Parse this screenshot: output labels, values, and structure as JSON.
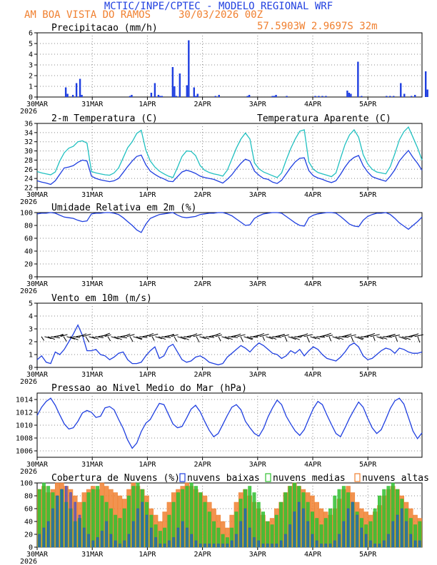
{
  "header": {
    "title": "MCTIC/INPE/CPTEC - MODELO REGIONAL WRF",
    "location": "AM BOA VISTA DO RAMOS",
    "date": "30/03/2026 00Z",
    "coords": "57.5903W 2.9697S 32m"
  },
  "colors": {
    "blue": "#1f3fe0",
    "cyan": "#20c0c0",
    "orange": "#f08030",
    "green": "#30c030",
    "grid": "#888888"
  },
  "x_ticks": [
    "30MAR",
    "31MAR",
    "1APR",
    "2APR",
    "3APR",
    "4APR",
    "5APR"
  ],
  "x_year": "2026",
  "chart_data": [
    {
      "type": "bar",
      "title": "Precipitacao (mm/h)",
      "ylim": [
        0,
        6
      ],
      "yticks": [
        "0",
        "1",
        "2",
        "3",
        "4",
        "5",
        "6"
      ],
      "x_hours": [
        16,
        17,
        20,
        22,
        24,
        25,
        52,
        53,
        64,
        66,
        68,
        69,
        70,
        76,
        77,
        78,
        80,
        84,
        85,
        88,
        89,
        90,
        100,
        102,
        118,
        119,
        132,
        133,
        134,
        140,
        156,
        158,
        160,
        162,
        174,
        175,
        176,
        180,
        182,
        196,
        198,
        200,
        204,
        206,
        210,
        212,
        218,
        219
      ],
      "values": [
        0.9,
        0.3,
        0.2,
        1.3,
        1.7,
        0.2,
        0.1,
        0.2,
        0.4,
        1.3,
        0.2,
        0.1,
        0.1,
        2.8,
        1.0,
        0.1,
        2.2,
        1.1,
        5.3,
        0.9,
        0.1,
        0.3,
        0.1,
        0.2,
        0.1,
        0.2,
        0.1,
        0.1,
        0.2,
        0.1,
        0.1,
        0.1,
        0.1,
        0.1,
        0.6,
        0.4,
        0.3,
        3.3,
        0.1,
        0.1,
        0.1,
        0.1,
        1.3,
        0.3,
        0.1,
        0.2,
        2.4,
        0.7
      ]
    },
    {
      "type": "line",
      "title": "2-m Temperatura (C)",
      "ylim": [
        22,
        36
      ],
      "yticks": [
        "22",
        "24",
        "26",
        "28",
        "30",
        "32",
        "34",
        "36"
      ],
      "legend": "Temperatura Aparente (C)",
      "series": [
        {
          "name": "Temperatura (C)",
          "color": "#1f3fe0",
          "values": [
            23.5,
            23.2,
            23.0,
            22.7,
            23.5,
            24.9,
            26.3,
            26.5,
            26.8,
            27.5,
            28.0,
            27.8,
            24.5,
            24.0,
            23.7,
            23.5,
            23.3,
            23.5,
            24.0,
            25.3,
            26.6,
            27.8,
            28.8,
            29.1,
            27.0,
            25.6,
            24.9,
            24.3,
            23.9,
            23.4,
            23.3,
            24.4,
            25.4,
            25.8,
            25.5,
            25.1,
            24.5,
            24.2,
            24.0,
            23.8,
            23.4,
            23.0,
            23.8,
            24.8,
            26.1,
            27.3,
            28.2,
            27.8,
            25.6,
            24.7,
            24.0,
            23.8,
            23.2,
            22.9,
            23.6,
            25.0,
            26.4,
            27.6,
            28.4,
            28.5,
            25.7,
            24.6,
            24.1,
            23.8,
            23.4,
            23.1,
            23.5,
            24.9,
            26.5,
            27.8,
            28.6,
            29.0,
            26.8,
            25.4,
            24.4,
            24.0,
            23.7,
            23.4,
            24.5,
            25.9,
            27.8,
            29.0,
            30.1,
            28.6,
            27.3,
            25.8
          ]
        },
        {
          "name": "Temperatura Aparente (C)",
          "color": "#20c0c0",
          "values": [
            25.5,
            25.2,
            25.0,
            24.8,
            25.4,
            27.8,
            29.6,
            30.6,
            31.0,
            32.0,
            32.2,
            31.7,
            25.5,
            25.2,
            25.0,
            24.8,
            24.7,
            25.2,
            26.3,
            28.5,
            30.7,
            32.0,
            33.8,
            34.5,
            30.2,
            27.8,
            26.5,
            25.6,
            25.0,
            24.5,
            24.2,
            26.4,
            28.8,
            30.0,
            29.9,
            29.0,
            26.8,
            25.8,
            25.3,
            25.0,
            24.8,
            24.5,
            25.8,
            28.2,
            30.6,
            32.6,
            33.9,
            32.6,
            27.4,
            26.1,
            25.4,
            25.0,
            24.6,
            24.2,
            25.2,
            28.0,
            30.5,
            32.6,
            34.3,
            34.6,
            27.6,
            26.0,
            25.3,
            25.0,
            24.7,
            24.4,
            25.2,
            28.4,
            31.4,
            33.5,
            34.6,
            33.0,
            29.2,
            27.2,
            26.0,
            25.4,
            25.2,
            25.0,
            26.6,
            29.4,
            32.4,
            34.2,
            35.2,
            33.0,
            30.7,
            28.0
          ]
        }
      ]
    },
    {
      "type": "line",
      "title": "Umidade Relativa em 2m (%)",
      "ylim": [
        0,
        100
      ],
      "yticks": [
        "0",
        "20",
        "40",
        "60",
        "80",
        "100"
      ],
      "series": [
        {
          "name": "Umidade Relativa",
          "color": "#1f3fe0",
          "values": [
            98,
            99,
            99,
            100,
            99,
            96,
            93,
            92,
            91,
            88,
            86,
            87,
            98,
            99,
            99,
            100,
            100,
            99,
            97,
            92,
            86,
            80,
            73,
            69,
            82,
            91,
            94,
            97,
            98,
            99,
            100,
            96,
            93,
            92,
            93,
            94,
            97,
            98,
            99,
            99,
            100,
            100,
            98,
            95,
            90,
            85,
            80,
            81,
            91,
            95,
            98,
            99,
            100,
            100,
            99,
            94,
            89,
            84,
            80,
            79,
            92,
            96,
            98,
            99,
            100,
            100,
            99,
            94,
            88,
            82,
            79,
            78,
            88,
            94,
            97,
            99,
            99,
            100,
            97,
            91,
            84,
            79,
            74,
            80,
            86,
            93
          ]
        }
      ]
    },
    {
      "type": "line",
      "title": "Vento em 10m (m/s)",
      "ylim": [
        0,
        5
      ],
      "yticks": [
        "0",
        "1",
        "2",
        "3",
        "4",
        "5"
      ],
      "series": [
        {
          "name": "Velocidade do Vento",
          "color": "#1f3fe0",
          "values": [
            0.6,
            0.9,
            0.4,
            0.3,
            1.2,
            1.0,
            1.4,
            2.0,
            2.6,
            3.3,
            2.5,
            1.3,
            1.3,
            1.4,
            1.0,
            0.9,
            0.6,
            0.8,
            1.1,
            1.2,
            0.6,
            0.3,
            0.3,
            0.4,
            0.9,
            1.3,
            1.6,
            0.7,
            0.9,
            1.6,
            1.8,
            1.2,
            0.6,
            0.4,
            0.5,
            0.8,
            0.9,
            0.7,
            0.4,
            0.3,
            0.2,
            0.3,
            0.8,
            1.1,
            1.4,
            1.7,
            1.5,
            1.2,
            1.6,
            1.9,
            1.7,
            1.4,
            1.1,
            1.0,
            0.7,
            0.9,
            1.3,
            1.1,
            1.4,
            0.9,
            1.3,
            1.6,
            1.4,
            1.0,
            0.7,
            0.6,
            0.5,
            0.8,
            1.2,
            1.7,
            1.9,
            1.6,
            0.9,
            0.6,
            0.7,
            1.0,
            1.3,
            1.5,
            1.4,
            1.1,
            1.5,
            1.4,
            1.2,
            1.1,
            1.1,
            1.2
          ]
        }
      ]
    },
    {
      "type": "line",
      "title": "Pressao ao Nivel Medio do Mar (hPa)",
      "ylim": [
        1005,
        1015
      ],
      "yticks": [
        "1006",
        "1008",
        "1010",
        "1012",
        "1014"
      ],
      "series": [
        {
          "name": "Pressao",
          "color": "#1f3fe0",
          "values": [
            1011.5,
            1012.8,
            1013.7,
            1014.2,
            1013.1,
            1011.6,
            1010.2,
            1009.4,
            1009.6,
            1010.6,
            1011.9,
            1012.3,
            1012.0,
            1011.2,
            1011.4,
            1012.7,
            1012.9,
            1012.4,
            1010.9,
            1009.5,
            1007.7,
            1006.4,
            1007.2,
            1009.0,
            1010.3,
            1010.9,
            1012.2,
            1013.4,
            1013.2,
            1011.7,
            1010.2,
            1009.6,
            1009.8,
            1011.1,
            1012.5,
            1013.1,
            1012.1,
            1010.6,
            1009.2,
            1008.2,
            1008.7,
            1010.1,
            1011.5,
            1012.8,
            1013.2,
            1012.4,
            1010.6,
            1009.6,
            1008.7,
            1008.3,
            1009.5,
            1011.3,
            1012.7,
            1013.9,
            1013.2,
            1011.4,
            1010.2,
            1009.1,
            1008.4,
            1009.3,
            1011.0,
            1012.6,
            1013.7,
            1013.2,
            1011.6,
            1010.1,
            1008.7,
            1008.2,
            1009.6,
            1011.1,
            1012.4,
            1013.6,
            1012.8,
            1011.1,
            1009.6,
            1008.7,
            1009.3,
            1010.9,
            1012.6,
            1013.8,
            1014.2,
            1013.3,
            1011.2,
            1009.1,
            1007.9,
            1008.8
          ]
        }
      ]
    },
    {
      "type": "bar",
      "title": "Cobertura de Nuvens (%)",
      "ylim": [
        0,
        100
      ],
      "yticks": [
        "0",
        "20",
        "40",
        "60",
        "80",
        "100"
      ],
      "legend": [
        "nuvens baixas",
        "nuvens medias",
        "nuvens altas"
      ],
      "series": [
        {
          "name": "nuvens altas",
          "color": "#f08030",
          "values": [
            90,
            95,
            85,
            90,
            100,
            100,
            95,
            90,
            80,
            70,
            85,
            90,
            95,
            90,
            100,
            95,
            90,
            85,
            80,
            75,
            90,
            100,
            95,
            90,
            80,
            60,
            50,
            40,
            55,
            70,
            85,
            90,
            95,
            100,
            95,
            90,
            85,
            80,
            70,
            60,
            50,
            40,
            30,
            50,
            70,
            85,
            90,
            80,
            70,
            60,
            50,
            40,
            45,
            60,
            70,
            85,
            95,
            100,
            95,
            90,
            85,
            80,
            70,
            60,
            55,
            50,
            60,
            75,
            90,
            95,
            85,
            70,
            60,
            55,
            50,
            55,
            65,
            80,
            90,
            95,
            90,
            80,
            70,
            60,
            50,
            45
          ]
        },
        {
          "name": "nuvens medias",
          "color": "#30c030",
          "values": [
            90,
            100,
            95,
            85,
            80,
            90,
            70,
            60,
            40,
            45,
            70,
            85,
            90,
            95,
            80,
            70,
            60,
            50,
            45,
            60,
            80,
            95,
            100,
            90,
            70,
            50,
            35,
            25,
            30,
            50,
            70,
            85,
            90,
            95,
            100,
            95,
            85,
            70,
            55,
            40,
            30,
            20,
            15,
            30,
            55,
            75,
            90,
            95,
            85,
            70,
            55,
            40,
            35,
            50,
            70,
            85,
            95,
            100,
            95,
            85,
            70,
            55,
            45,
            35,
            45,
            60,
            80,
            90,
            95,
            85,
            70,
            55,
            45,
            35,
            40,
            60,
            80,
            90,
            95,
            100,
            90,
            75,
            60,
            45,
            35,
            40
          ]
        },
        {
          "name": "nuvens baixas",
          "color": "#1f3fe0",
          "values": [
            20,
            30,
            40,
            60,
            80,
            90,
            95,
            85,
            70,
            50,
            30,
            20,
            10,
            15,
            25,
            40,
            20,
            10,
            5,
            10,
            20,
            40,
            60,
            70,
            50,
            30,
            15,
            5,
            5,
            10,
            15,
            30,
            40,
            30,
            20,
            10,
            5,
            5,
            5,
            5,
            5,
            5,
            5,
            10,
            20,
            40,
            60,
            30,
            15,
            10,
            5,
            5,
            5,
            5,
            10,
            20,
            35,
            55,
            70,
            60,
            40,
            20,
            10,
            5,
            5,
            5,
            10,
            20,
            40,
            60,
            70,
            50,
            30,
            20,
            10,
            5,
            5,
            10,
            20,
            40,
            50,
            60,
            40,
            20,
            10,
            10
          ]
        }
      ]
    }
  ]
}
